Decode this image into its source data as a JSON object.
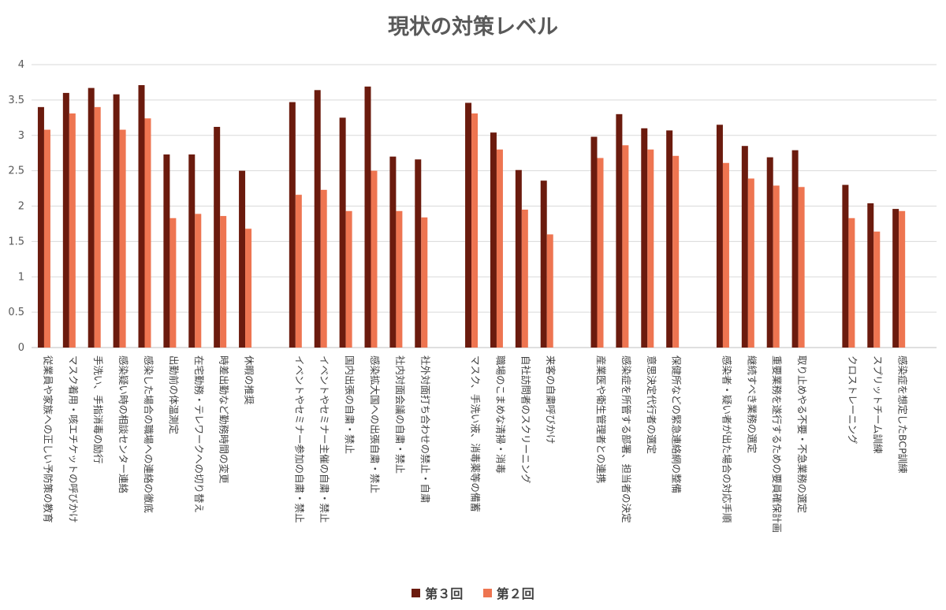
{
  "chart_data": {
    "type": "bar",
    "title": "現状の対策レベル",
    "ylim": [
      0,
      4
    ],
    "yticks": [
      "0",
      "0.5",
      "1",
      "1.5",
      "2",
      "2.5",
      "3",
      "3.5",
      "4"
    ],
    "grid": true,
    "legend_position": "bottom",
    "colors": {
      "第３回": "#6B1B0E",
      "第２回": "#EE7551"
    },
    "groups": [
      {
        "categories": [
          "従業員や家族への正しい予防策の教育",
          "マスク着用・咳エチケットの呼びかけ",
          "手洗い、手指消毒の励行",
          "感染疑い時の相談センター連絡",
          "感染した場合の職場への連絡の徹底",
          "出勤前の体温測定",
          "在宅勤務・テレワークへの切り替え",
          "時差出勤など勤務時間の変更",
          "休暇の推奨"
        ]
      },
      {
        "categories": [
          "イベントやセミナー参加の自粛・禁止",
          "イベントやセミナー主催の自粛・禁止",
          "国内出張の自粛・禁止",
          "感染拡大国への出張自粛・禁止",
          "社内対面会議の自粛・禁止",
          "社外対面打ち合わせの禁止・自粛"
        ]
      },
      {
        "categories": [
          "マスク、手洗い液、消毒薬等の備蓄",
          "職場のこまめな清掃・消毒",
          "自社訪問者のスクリーニング",
          "来客の自粛呼びかけ"
        ]
      },
      {
        "categories": [
          "産業医や衛生管理者との連携",
          "感染症を所管する部署、担当者の決定",
          "意思決定代行者の選定",
          "保健所などの緊急連絡網の整備"
        ]
      },
      {
        "categories": [
          "感染者・疑い者が出た場合の対応手順",
          "継続すべき業務の選定",
          "重要業務を遂行するための要員確保計画",
          "取り止めやる不要・不急業務の選定"
        ]
      },
      {
        "categories": [
          "クロストレーニング",
          "スプリットチーム訓練",
          "感染症を想定したBCP訓練"
        ]
      }
    ],
    "series": [
      {
        "name": "第３回",
        "values": [
          3.4,
          3.6,
          3.67,
          3.58,
          3.71,
          2.73,
          2.73,
          3.12,
          2.5,
          3.47,
          3.64,
          3.25,
          3.69,
          2.7,
          2.66,
          3.46,
          3.04,
          2.51,
          2.36,
          2.98,
          3.3,
          3.1,
          3.07,
          3.15,
          2.85,
          2.69,
          2.79,
          2.3,
          2.04,
          1.96
        ]
      },
      {
        "name": "第２回",
        "values": [
          3.08,
          3.31,
          3.4,
          3.08,
          3.24,
          1.83,
          1.89,
          1.86,
          1.68,
          2.16,
          2.23,
          1.93,
          2.5,
          1.93,
          1.84,
          3.31,
          2.8,
          1.95,
          1.6,
          2.68,
          2.86,
          2.8,
          2.71,
          2.61,
          2.39,
          2.29,
          2.27,
          1.83,
          1.64,
          1.93
        ]
      }
    ]
  }
}
